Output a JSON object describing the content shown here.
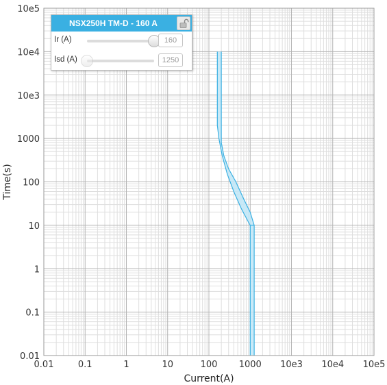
{
  "chart_data": {
    "type": "line",
    "xlabel": "Current(A)",
    "ylabel": "Time(s)",
    "x_scale": "log",
    "y_scale": "log",
    "xlim": [
      0.01,
      100000
    ],
    "ylim": [
      0.01,
      100000
    ],
    "grid": true,
    "x_ticks": [
      {
        "value": 0.01,
        "label": "0.01"
      },
      {
        "value": 0.1,
        "label": "0.1"
      },
      {
        "value": 1,
        "label": "1"
      },
      {
        "value": 10,
        "label": "10"
      },
      {
        "value": 100,
        "label": "100"
      },
      {
        "value": 1000,
        "label": "1000"
      },
      {
        "value": 10000,
        "label": "10e3"
      },
      {
        "value": 100000,
        "label": "10e4"
      },
      {
        "value": 1000000,
        "label": "10e5"
      }
    ],
    "y_ticks": [
      {
        "value": 0.01,
        "label": "0.01"
      },
      {
        "value": 0.1,
        "label": "0.1"
      },
      {
        "value": 1,
        "label": "1"
      },
      {
        "value": 10,
        "label": "10"
      },
      {
        "value": 100,
        "label": "100"
      },
      {
        "value": 1000,
        "label": "1000"
      },
      {
        "value": 10000,
        "label": "10e3"
      },
      {
        "value": 100000,
        "label": "10e4"
      },
      {
        "value": 1000000,
        "label": "10e5"
      }
    ],
    "series": [
      {
        "kind": "band",
        "color": "#3ab0e2",
        "fill": "#bfe6f7",
        "lower": [
          [
            160,
            100000
          ],
          [
            160,
            2000
          ],
          [
            175,
            1000
          ],
          [
            210,
            400
          ],
          [
            280,
            150
          ],
          [
            400,
            60
          ],
          [
            600,
            25
          ],
          [
            900,
            12
          ],
          [
            1000,
            10
          ],
          [
            1000,
            0.01
          ]
        ],
        "upper": [
          [
            200,
            100000
          ],
          [
            200,
            800
          ],
          [
            230,
            400
          ],
          [
            300,
            200
          ],
          [
            450,
            100
          ],
          [
            700,
            40
          ],
          [
            1000,
            20
          ],
          [
            1250,
            10
          ],
          [
            1250,
            0.01
          ]
        ]
      }
    ]
  },
  "panel": {
    "title": "NSX250H TM-D - 160 A",
    "lock_icon": "unlock-icon",
    "ir": {
      "label": "Ir (A)",
      "value": "160",
      "position": 1.0
    },
    "isd": {
      "label": "Isd (A)",
      "value": "1250",
      "position": 0.0
    }
  }
}
